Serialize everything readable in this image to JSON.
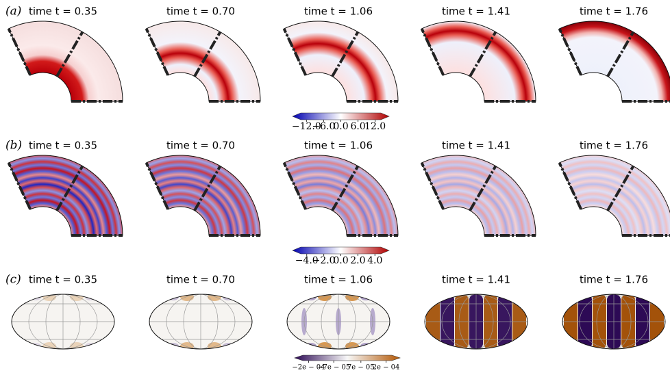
{
  "rows": [
    {
      "label": "(a)",
      "titles": [
        "time t = 0.35",
        "time t = 0.70",
        "time t = 1.06",
        "time t = 1.41",
        "time t = 1.76"
      ],
      "colorbar": {
        "range": [
          -14,
          14
        ],
        "ticks": [
          {
            "value": -12,
            "label": "−12.0"
          },
          {
            "value": -6,
            "label": "−6.0"
          },
          {
            "value": 0,
            "label": "0.0"
          },
          {
            "value": 6,
            "label": "6.0"
          },
          {
            "value": 12,
            "label": "12.0"
          }
        ]
      }
    },
    {
      "label": "(b)",
      "titles": [
        "time t = 0.35",
        "time t = 0.70",
        "time t = 1.06",
        "time t = 1.41",
        "time t = 1.76"
      ],
      "colorbar": {
        "range": [
          -4.7,
          4.7
        ],
        "ticks": [
          {
            "value": -4,
            "label": "−4.0"
          },
          {
            "value": -2,
            "label": "−2.0"
          },
          {
            "value": 0,
            "label": "0.0"
          },
          {
            "value": 2,
            "label": "2.0"
          },
          {
            "value": 4,
            "label": "4.0"
          }
        ]
      }
    },
    {
      "label": "(c)",
      "titles": [
        "time t = 0.35",
        "time t = 0.70",
        "time t = 1.06",
        "time t = 1.41",
        "time t = 1.76"
      ],
      "colorbar": {
        "range": [
          -0.00023,
          0.00023
        ],
        "ticks": [
          {
            "value": -0.0002,
            "label": "−2e − 04"
          },
          {
            "value": -7e-05,
            "label": "−7e − 05"
          },
          {
            "value": 7e-05,
            "label": "7e − 05"
          },
          {
            "value": 0.0002,
            "label": "2e − 04"
          }
        ]
      }
    }
  ]
}
